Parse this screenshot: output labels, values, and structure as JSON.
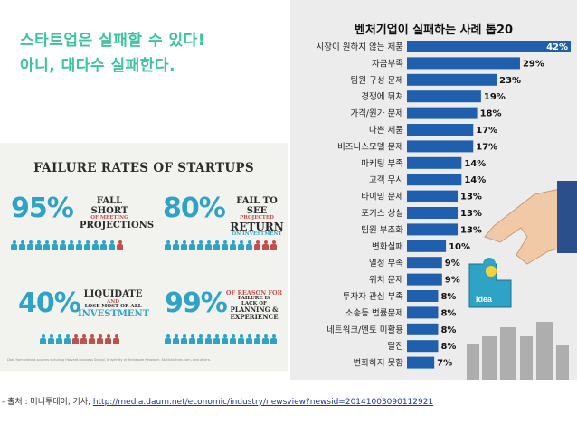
{
  "headline": {
    "line1": "스타트업은 실패할 수 있다!",
    "line2": "아니, 대다수 실패한다."
  },
  "infographic": {
    "title": "FAILURE RATES OF STARTUPS",
    "stats": [
      {
        "percent": "95%",
        "label_top": "FALL SHORT",
        "label_mid": "OF MEETING",
        "label_bottom": "PROJECTIONS",
        "value": 95
      },
      {
        "percent": "80%",
        "label_top": "FAIL TO SEE",
        "label_mid": "PROJECTED",
        "label_bottom": "RETURN",
        "label_extra": "ON INVESTMENT",
        "value": 80
      },
      {
        "percent": "40%",
        "label_top": "LIQUIDATE",
        "label_mid": "AND",
        "label_bottom": "LOSE MOST OR ALL",
        "label_extra": "INVESTMENT",
        "value": 40
      },
      {
        "percent": "99%",
        "label_top": "OF REASON FOR",
        "label_mid": "FAILURE IS",
        "label_bottom": "LACK OF",
        "label_extra": "PLANNING & EXPERIENCE",
        "value": 99
      }
    ],
    "source": "Data from various sources including Harvard Business School, University of Tennessee Research, StatisticBrain.com, and others."
  },
  "colors": {
    "accent": "#3cc3a0",
    "bar": "#1f5fae",
    "info_blue": "#2fa3c6",
    "info_red": "#c0504d"
  },
  "chart_data": {
    "type": "bar",
    "orientation": "horizontal",
    "title": "벤처기업이 실패하는 사례 톱20",
    "categories": [
      "시장이 원하지 않는 제품",
      "자금부족",
      "팀원 구성 문제",
      "경쟁에 뒤쳐",
      "가격/원가 문제",
      "나쁜 제품",
      "비즈니스모델 문제",
      "마케팅 부족",
      "고객 무시",
      "타이밍 문제",
      "포커스 상실",
      "팀원 부조화",
      "변화실패",
      "열정 부족",
      "위치 문제",
      "투자자 관심 부족",
      "소송등 법률문제",
      "네트워크/멘토 미활용",
      "탈진",
      "변화하지 못함"
    ],
    "values": [
      42,
      29,
      23,
      19,
      18,
      17,
      17,
      14,
      14,
      13,
      13,
      13,
      10,
      9,
      9,
      8,
      8,
      8,
      8,
      7
    ],
    "value_labels": [
      "42%",
      "29%",
      "23%",
      "19%",
      "18%",
      "17%",
      "17%",
      "14%",
      "14%",
      "13%",
      "13%",
      "13%",
      "10%",
      "9%",
      "9%",
      "8%",
      "8%",
      "8%",
      "8%",
      "7%"
    ],
    "xlim": [
      0,
      42
    ],
    "unit": "%"
  },
  "illustration": {
    "puzzle_text": "Idea"
  },
  "source_line": {
    "prefix": "- 출처 : 머니투데이, 기사, ",
    "link": "http://media.daum.net/economic/industry/newsview?newsid=20141003090112921"
  }
}
